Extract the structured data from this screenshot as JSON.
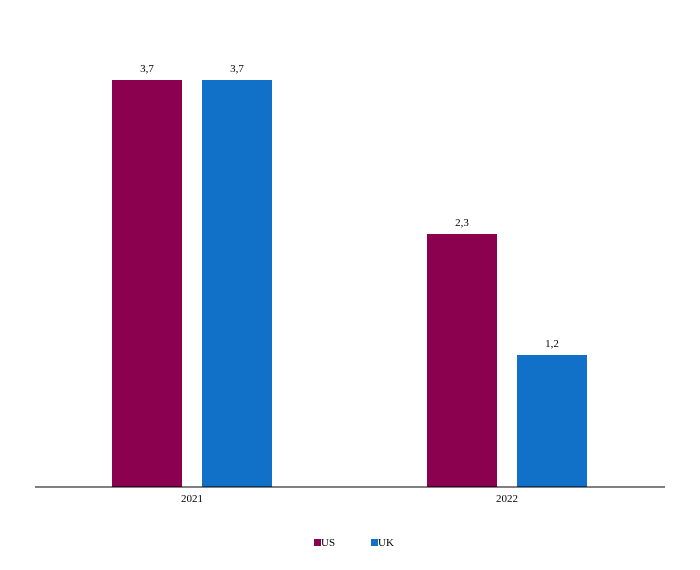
{
  "chart_data": {
    "type": "bar",
    "categories": [
      "2021",
      "2022"
    ],
    "series": [
      {
        "name": "US",
        "values": [
          3.7,
          2.3
        ],
        "labels": [
          "3,7",
          "2,3"
        ],
        "color": "#8b004f"
      },
      {
        "name": "UK",
        "values": [
          3.7,
          1.2
        ],
        "labels": [
          "3,7",
          "1,2"
        ],
        "color": "#1170c8"
      }
    ],
    "ylim": [
      0,
      3.7
    ],
    "grid": false,
    "legend_position": "bottom-center",
    "title": "",
    "xlabel": "",
    "ylabel": ""
  }
}
